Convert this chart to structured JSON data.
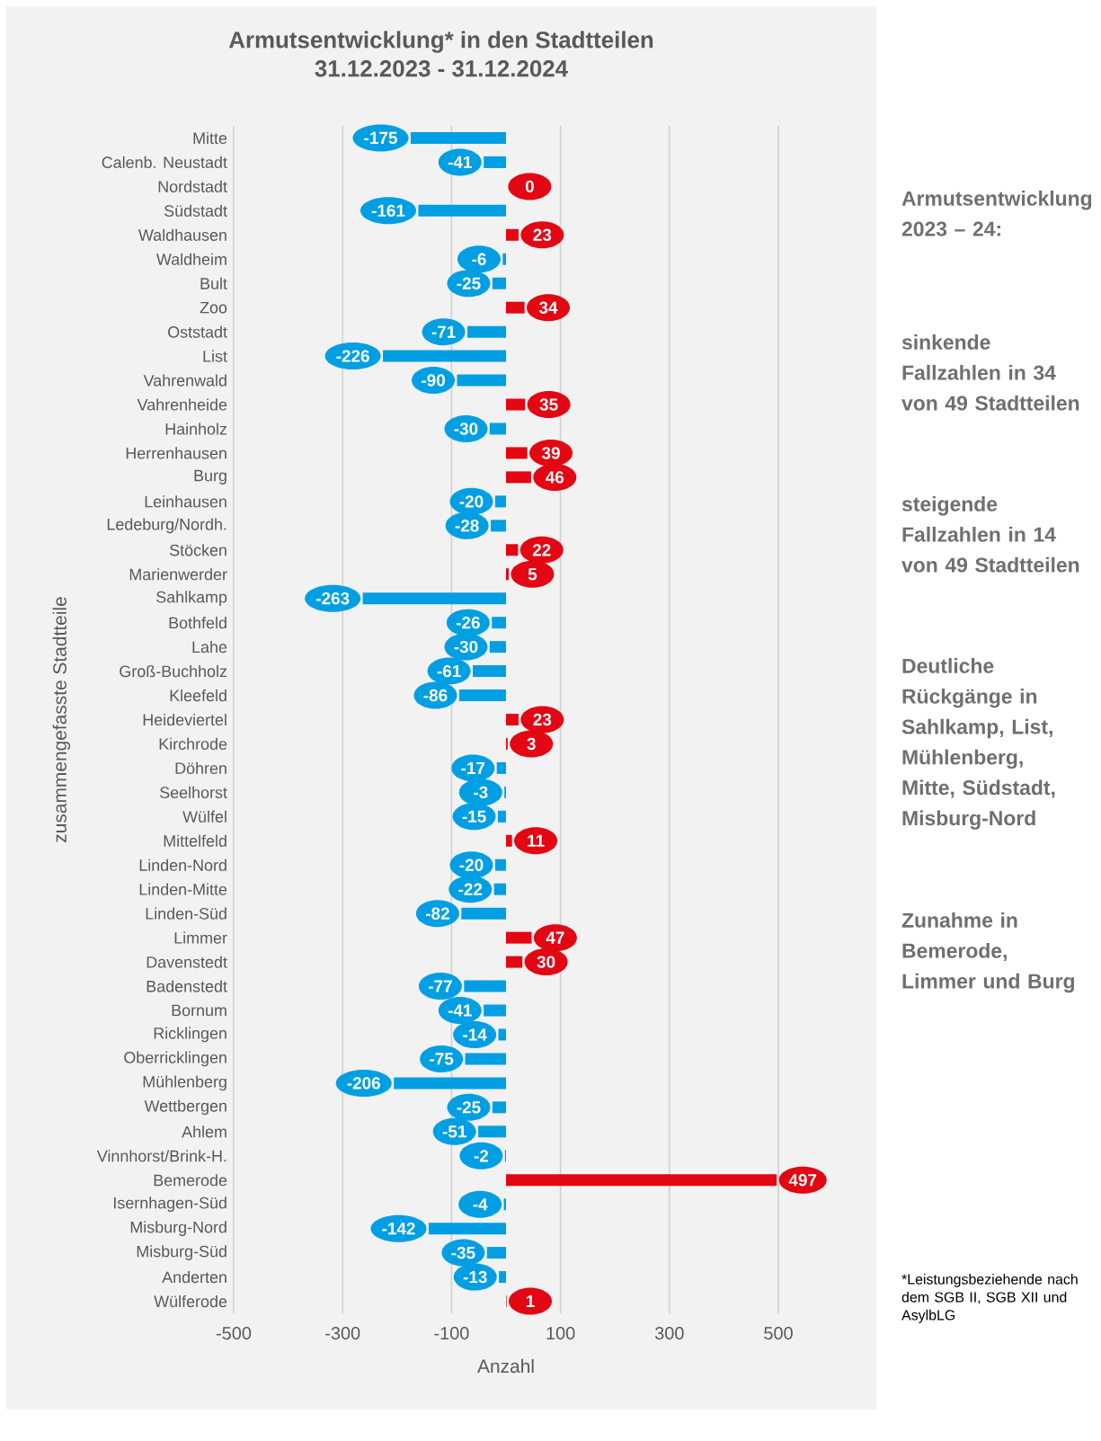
{
  "chart_data": {
    "type": "bar",
    "orientation": "horizontal",
    "title": "Armutsentwicklung* in den Stadtteilen",
    "subtitle": "31.12.2023 - 31.12.2024",
    "xlabel": "Anzahl",
    "ylabel": "zusammengefasste Stadtteile",
    "categories": [
      "Mitte",
      "Calenb. Neustadt",
      "Nordstadt",
      "Südstadt",
      "Waldhausen",
      "Waldheim",
      "Bult",
      "Zoo",
      "Oststadt",
      "List",
      "Vahrenwald",
      "Vahrenheide",
      "Hainholz",
      "Herrenhausen",
      "Burg",
      "Leinhausen",
      "Ledeburg/Nordh.",
      "Stöcken",
      "Marienwerder",
      "Sahlkamp",
      "Bothfeld",
      "Lahe",
      "Groß-Buchholz",
      "Kleefeld",
      "Heideviertel",
      "Kirchrode",
      "Döhren",
      "Seelhorst",
      "Wülfel",
      "Mittelfeld",
      "Linden-Nord",
      "Linden-Mitte",
      "Linden-Süd",
      "Limmer",
      "Davenstedt",
      "Badenstedt",
      "Bornum",
      "Ricklingen",
      "Oberricklingen",
      "Mühlenberg",
      "Wettbergen",
      "Ahlem",
      "Vinnhorst/Brink-H.",
      "Bemerode",
      "Isernhagen-Süd",
      "Misburg-Nord",
      "Misburg-Süd",
      "Anderten",
      "Wülferode"
    ],
    "values": [
      -175,
      -41,
      0,
      -161,
      23,
      -6,
      -25,
      34,
      -71,
      -226,
      -90,
      35,
      -30,
      39,
      46,
      -20,
      -28,
      22,
      5,
      -263,
      -26,
      -30,
      -61,
      -86,
      23,
      3,
      -17,
      -3,
      -15,
      11,
      -20,
      -22,
      -82,
      47,
      30,
      -77,
      -41,
      -14,
      -75,
      -206,
      -25,
      -51,
      -2,
      497,
      -4,
      -142,
      -35,
      -13,
      1
    ],
    "colors": [
      "#009fe3",
      "#009fe3",
      "#e30613",
      "#009fe3",
      "#e30613",
      "#009fe3",
      "#009fe3",
      "#e30613",
      "#009fe3",
      "#009fe3",
      "#009fe3",
      "#e30613",
      "#009fe3",
      "#e30613",
      "#e30613",
      "#009fe3",
      "#009fe3",
      "#e30613",
      "#e30613",
      "#009fe3",
      "#009fe3",
      "#009fe3",
      "#009fe3",
      "#009fe3",
      "#e30613",
      "#e30613",
      "#009fe3",
      "#009fe3",
      "#009fe3",
      "#e30613",
      "#009fe3",
      "#009fe3",
      "#009fe3",
      "#e30613",
      "#e30613",
      "#009fe3",
      "#009fe3",
      "#009fe3",
      "#009fe3",
      "#009fe3",
      "#009fe3",
      "#009fe3",
      "#009fe3",
      "#e30613",
      "#009fe3",
      "#009fe3",
      "#009fe3",
      "#009fe3",
      "#e30613"
    ],
    "data_labels": true,
    "xlim": [
      -500,
      500
    ],
    "xticks": [
      -500,
      -300,
      -100,
      100,
      300,
      500
    ],
    "grid": "x",
    "annotations": [
      "Armutsentwicklung 2023 – 24:",
      "sinkende Fallzahlen in 34 von 49 Stadtteilen",
      "steigende Fallzahlen in 14 von 49 Stadtteilen",
      "Deutliche Rückgänge in Sahlkamp, List, Mühlenberg, Mitte, Südstadt, Misburg-Nord",
      "Zunahme in Bemerode, Limmer und Burg",
      "*Leistungsbeziehende nach dem SGB II, SGB XII und AsylbLG"
    ]
  }
}
